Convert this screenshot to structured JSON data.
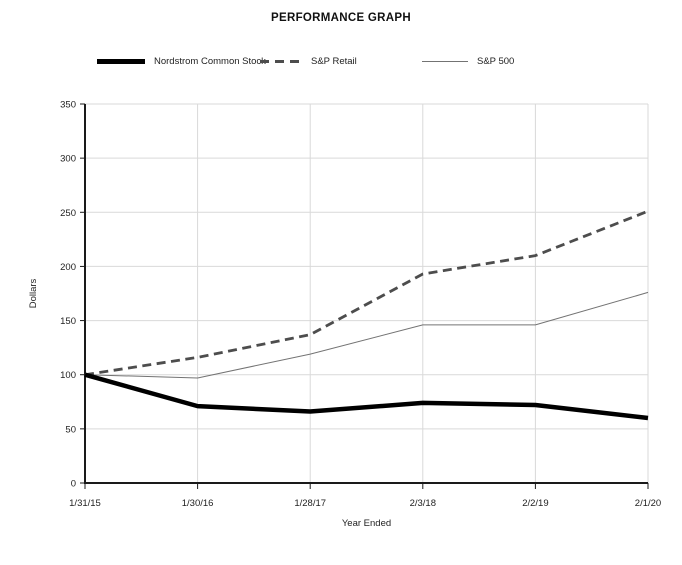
{
  "page": {
    "title": "PERFORMANCE GRAPH"
  },
  "chart_data": {
    "type": "line",
    "title": "PERFORMANCE GRAPH",
    "xlabel": "Year Ended",
    "ylabel": "Dollars",
    "categories": [
      "1/31/15",
      "1/30/16",
      "1/28/17",
      "2/3/18",
      "2/2/19",
      "2/1/20"
    ],
    "y_ticks": [
      0,
      50,
      100,
      150,
      200,
      250,
      300,
      350
    ],
    "ylim": [
      0,
      350
    ],
    "grid": true,
    "legend_position": "top",
    "colors": {
      "axis": "#1a1a1a",
      "gridline": "#d9d9d9",
      "text": "#222222"
    },
    "series": [
      {
        "name": "Nordstrom Common Stock",
        "values": [
          100,
          71,
          66,
          74,
          72,
          60
        ],
        "color": "#000000",
        "line_style": "solid-thick"
      },
      {
        "name": "S&P Retail",
        "values": [
          100,
          116,
          137,
          193,
          210,
          251
        ],
        "color": "#4d4d4d",
        "line_style": "dashed"
      },
      {
        "name": "S&P 500",
        "values": [
          100,
          97,
          119,
          146,
          146,
          176
        ],
        "color": "#737373",
        "line_style": "solid-thin"
      }
    ]
  }
}
